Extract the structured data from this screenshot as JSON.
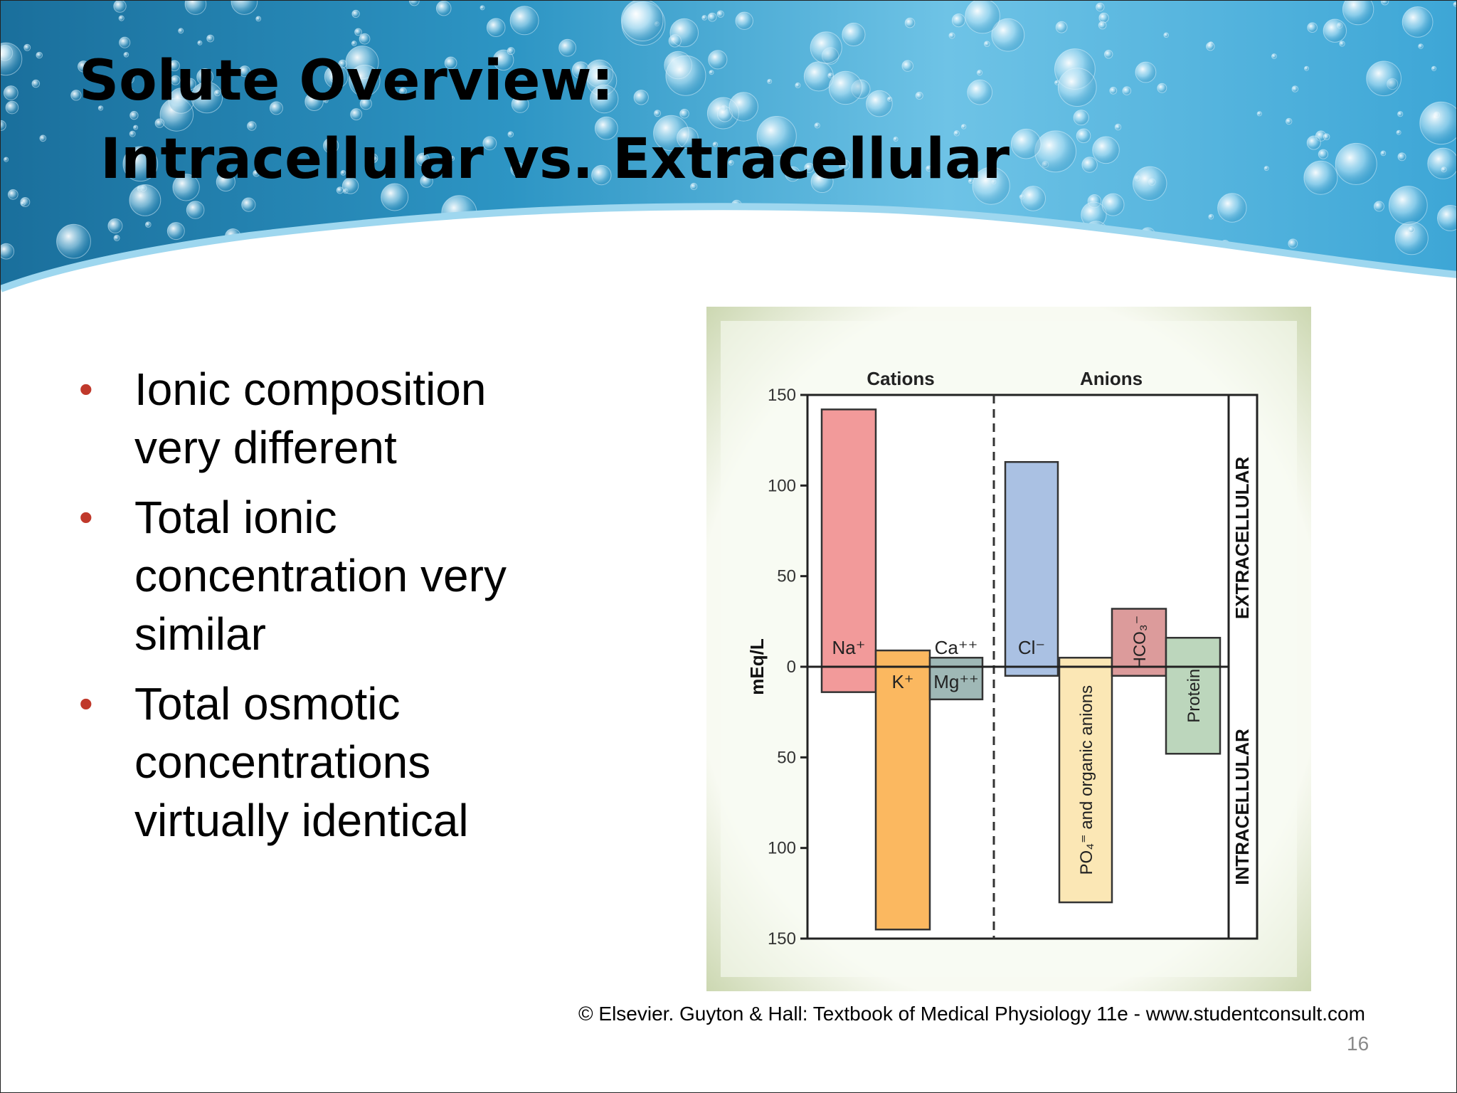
{
  "slide": {
    "title_line1": "Solute Overview:",
    "title_line2": "Intracellular vs. Extracellular",
    "bullets": [
      "Ionic composition very different",
      "Total ionic concentration very similar",
      "Total osmotic concentrations virtually identical"
    ],
    "credit": "© Elsevier. Guyton & Hall: Textbook of Medical Physiology 11e - www.studentconsult.com",
    "page_number": "16",
    "bullet_color": "#c0392b"
  },
  "chart_data": {
    "type": "bar",
    "ylabel": "mEq/L",
    "y_ticks_extracellular": [
      "150",
      "100",
      "50",
      "0"
    ],
    "y_ticks_intracellular": [
      "50",
      "100",
      "150"
    ],
    "ylim": [
      -150,
      150
    ],
    "panel_labels": {
      "cations": "Cations",
      "anions": "Anions"
    },
    "region_labels": {
      "top": "EXTRACELLULAR",
      "bottom": "INTRACELLULAR"
    },
    "bars": [
      {
        "ion": "Na⁺",
        "group": "cations",
        "extracellular": 142,
        "intracellular": 14,
        "color": "#f29a9a",
        "label_side": "top"
      },
      {
        "ion": "K⁺",
        "group": "cations",
        "extracellular": 9,
        "intracellular": 145,
        "color": "#fbb860",
        "label_side": "bottom"
      },
      {
        "ion": "Ca⁺⁺",
        "group": "cations",
        "extracellular": 5,
        "intracellular": 0,
        "color": "#9fb8b6",
        "label_side": "top"
      },
      {
        "ion": "Mg⁺⁺",
        "group": "cations",
        "extracellular": 5,
        "intracellular": 18,
        "color": "#9fb8b6",
        "label_side": "bottom"
      },
      {
        "ion": "Cl⁻",
        "group": "anions",
        "extracellular": 113,
        "intracellular": 5,
        "color": "#aac1e3",
        "label_side": "top"
      },
      {
        "ion": "PO₄⁼ and organic anions",
        "group": "anions",
        "extracellular": 5,
        "intracellular": 130,
        "color": "#fbe7b5",
        "label_side": "vertical"
      },
      {
        "ion": "HCO₃⁻",
        "group": "anions",
        "extracellular": 32,
        "intracellular": 5,
        "color": "#dc9b9b",
        "label_side": "vertical"
      },
      {
        "ion": "Protein",
        "group": "anions",
        "extracellular": 16,
        "intracellular": 48,
        "color": "#bcd6bc",
        "label_side": "vertical"
      }
    ]
  }
}
